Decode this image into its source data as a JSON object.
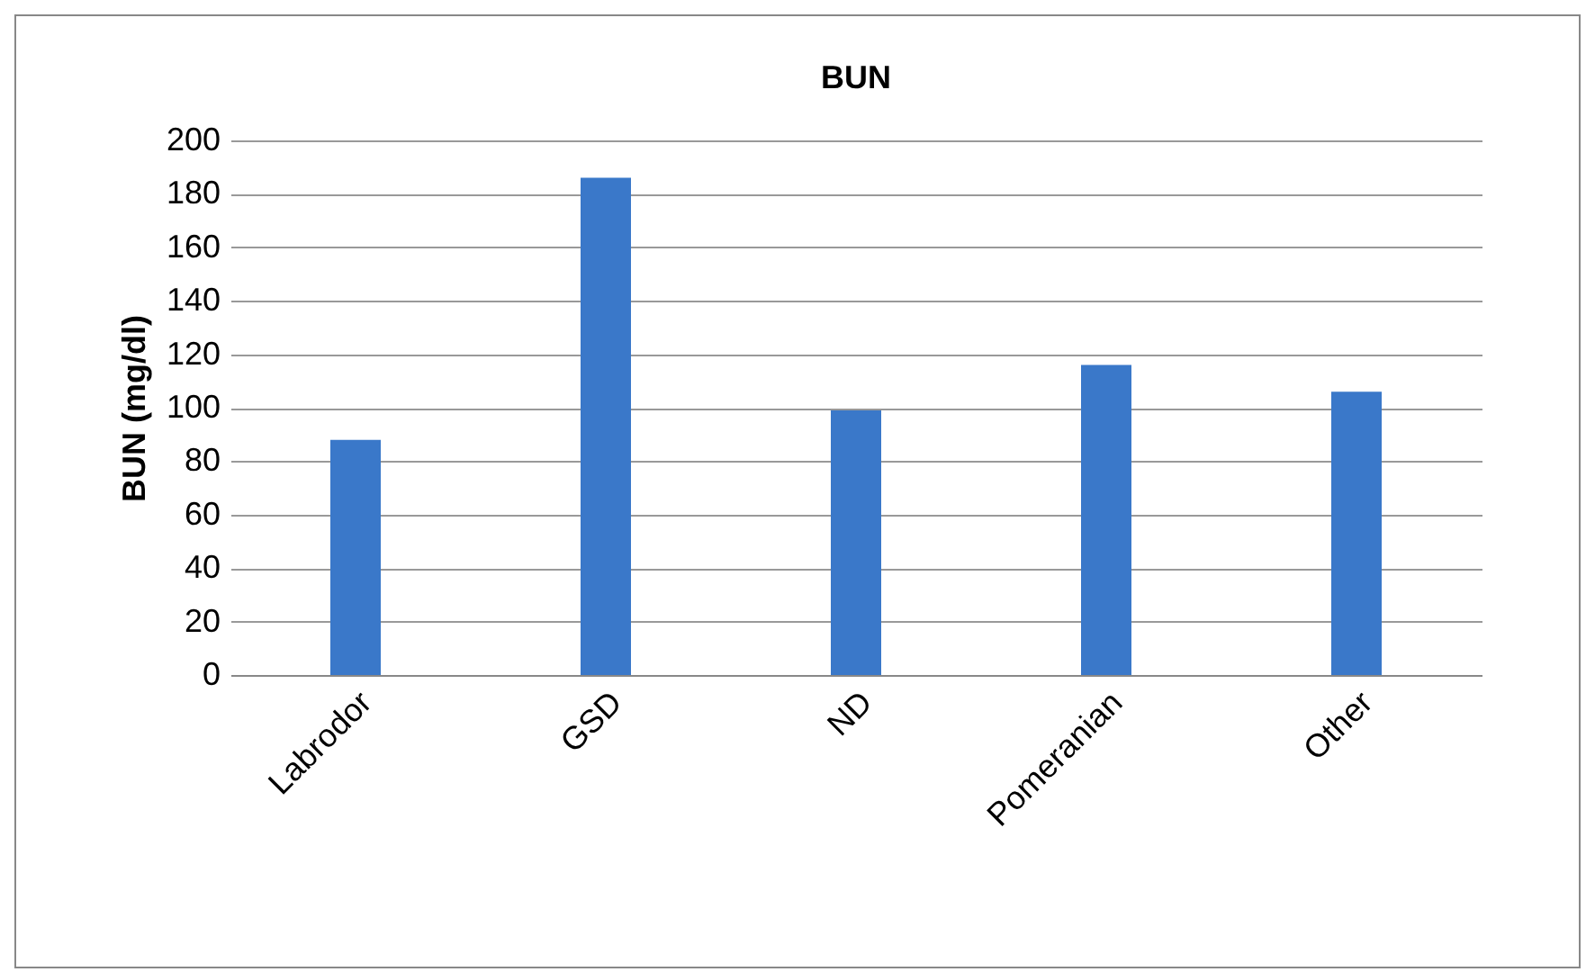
{
  "chart_data": {
    "type": "bar",
    "title": "BUN",
    "ylabel": "BUN (mg/dl)",
    "categories": [
      "Labrodor",
      "GSD",
      "ND",
      "Pomeranian",
      "Other"
    ],
    "values": [
      88,
      186,
      99,
      116,
      106
    ],
    "color": "#3a78c9",
    "ylim": [
      0,
      200
    ],
    "yticks": [
      0,
      20,
      40,
      60,
      80,
      100,
      120,
      140,
      160,
      180,
      200
    ],
    "grid": "y"
  }
}
